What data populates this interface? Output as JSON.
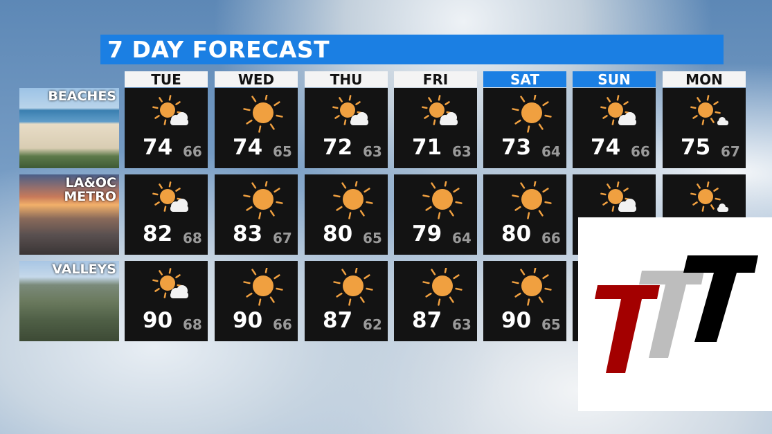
{
  "title": "7 DAY FORECAST",
  "days": [
    {
      "label": "TUE",
      "weekend": false
    },
    {
      "label": "WED",
      "weekend": false
    },
    {
      "label": "THU",
      "weekend": false
    },
    {
      "label": "FRI",
      "weekend": false
    },
    {
      "label": "SAT",
      "weekend": true
    },
    {
      "label": "SUN",
      "weekend": true
    },
    {
      "label": "MON",
      "weekend": false
    }
  ],
  "regions": [
    {
      "label": "BEACHES",
      "style": "beach",
      "forecast": [
        {
          "icon": "partly-sunny-icon",
          "hi": "74",
          "lo": "66"
        },
        {
          "icon": "sun-icon",
          "hi": "74",
          "lo": "65"
        },
        {
          "icon": "partly-sunny-icon",
          "hi": "72",
          "lo": "63"
        },
        {
          "icon": "partly-sunny-icon",
          "hi": "71",
          "lo": "63"
        },
        {
          "icon": "sun-icon",
          "hi": "73",
          "lo": "64"
        },
        {
          "icon": "partly-sunny-icon",
          "hi": "74",
          "lo": "66"
        },
        {
          "icon": "mostly-sunny-icon",
          "hi": "75",
          "lo": "67"
        }
      ]
    },
    {
      "label": "LA&OC\nMETRO",
      "style": "metro",
      "forecast": [
        {
          "icon": "partly-sunny-icon",
          "hi": "82",
          "lo": "68"
        },
        {
          "icon": "sun-icon",
          "hi": "83",
          "lo": "67"
        },
        {
          "icon": "sun-icon",
          "hi": "80",
          "lo": "65"
        },
        {
          "icon": "sun-icon",
          "hi": "79",
          "lo": "64"
        },
        {
          "icon": "sun-icon",
          "hi": "80",
          "lo": "66"
        },
        {
          "icon": "partly-sunny-icon"
        },
        {
          "icon": "mostly-sunny-icon"
        }
      ]
    },
    {
      "label": "VALLEYS",
      "style": "valley",
      "forecast": [
        {
          "icon": "partly-sunny-icon",
          "hi": "90",
          "lo": "68"
        },
        {
          "icon": "sun-icon",
          "hi": "90",
          "lo": "66"
        },
        {
          "icon": "sun-icon",
          "hi": "87",
          "lo": "62"
        },
        {
          "icon": "sun-icon",
          "hi": "87",
          "lo": "63"
        },
        {
          "icon": "sun-icon",
          "hi": "90",
          "lo": "65"
        },
        {},
        {}
      ]
    }
  ],
  "colors": {
    "accent": "#1b7fe3",
    "sun": "#f0a040",
    "logo_red": "#a30000",
    "logo_gray": "#bdbdbd",
    "logo_black": "#000000"
  }
}
